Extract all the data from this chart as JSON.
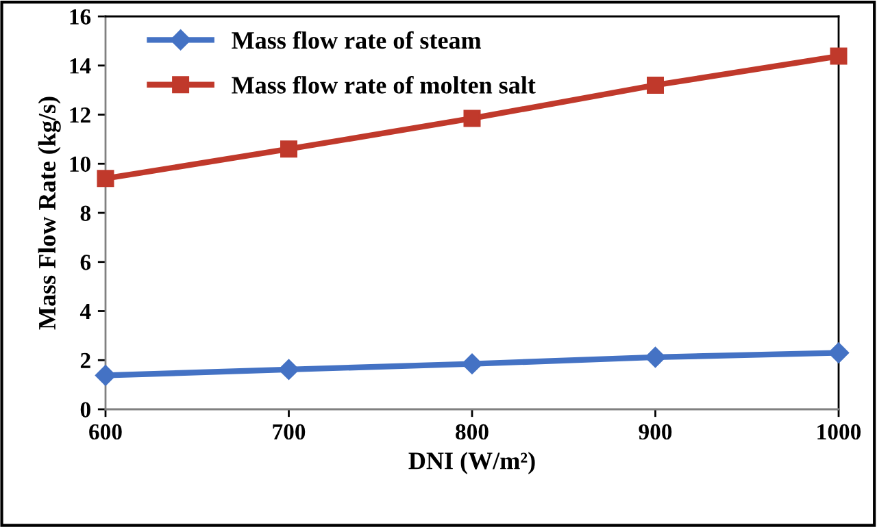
{
  "chart_data": {
    "type": "line",
    "xlabel": "DNI (W/m²)",
    "ylabel": "Mass Flow Rate (kg/s)",
    "x": [
      600,
      700,
      800,
      900,
      1000
    ],
    "series": [
      {
        "name": "Mass flow rate of steam",
        "color": "#4472c4",
        "marker": "diamond",
        "values": [
          1.38,
          1.62,
          1.85,
          2.12,
          2.3
        ]
      },
      {
        "name": "Mass flow rate of molten salt",
        "color": "#c0392b",
        "marker": "square",
        "values": [
          9.4,
          10.6,
          11.85,
          13.2,
          14.38
        ]
      }
    ],
    "xlim": [
      600,
      1000
    ],
    "xticks": [
      600,
      700,
      800,
      900,
      1000
    ],
    "ylim": [
      0,
      16
    ],
    "yticks": [
      0,
      2,
      4,
      6,
      8,
      10,
      12,
      14,
      16
    ],
    "grid": false,
    "legend": "top left",
    "line_style": "solid"
  }
}
